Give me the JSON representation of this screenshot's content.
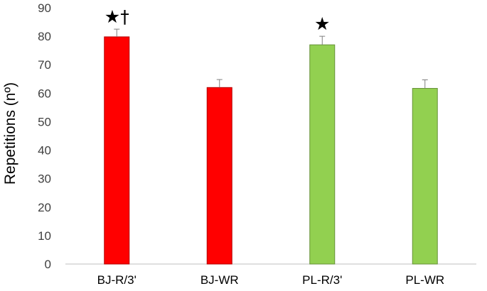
{
  "chart_data": {
    "type": "bar",
    "title": "",
    "xlabel": "",
    "ylabel": "Repetitions (nº)",
    "categories": [
      "BJ-R/3'",
      "BJ-WR",
      "PL-R/3'",
      "PL-WR"
    ],
    "values": [
      79.8,
      62.0,
      77.0,
      61.7
    ],
    "error_plus": [
      2.7,
      2.8,
      3.0,
      3.0
    ],
    "colors": [
      "#ff0000",
      "#ff0000",
      "#92d050",
      "#92d050"
    ],
    "annotations": [
      "★†",
      "",
      "★",
      ""
    ],
    "ylim": [
      0,
      90
    ],
    "yticks": [
      0,
      10,
      20,
      30,
      40,
      50,
      60,
      70,
      80,
      90
    ],
    "grid": false,
    "legend": "none"
  }
}
